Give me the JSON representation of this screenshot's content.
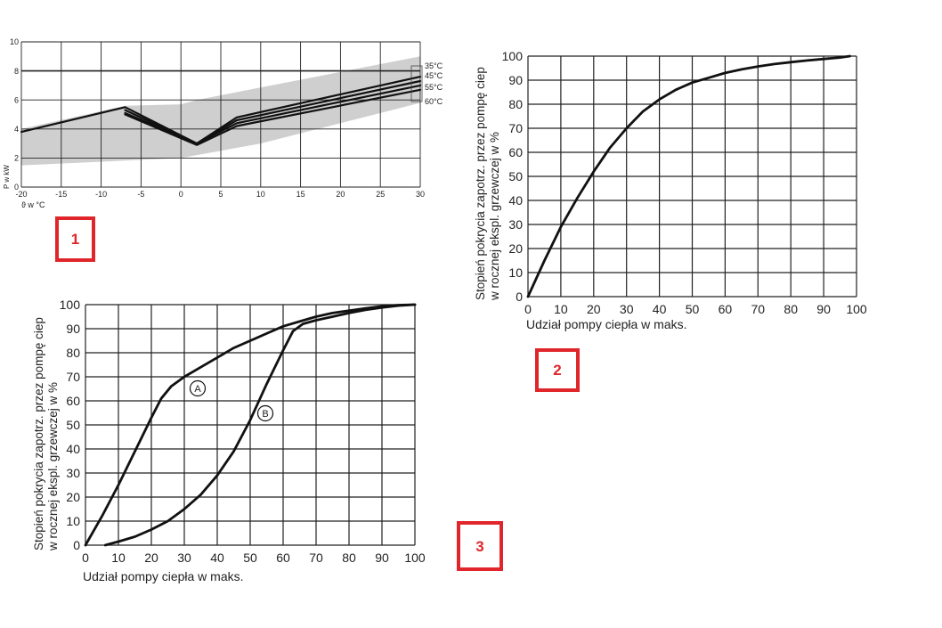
{
  "colors": {
    "badge": "#e0262b",
    "line": "#111111",
    "band": "#cfcfcf",
    "grid": "#222222"
  },
  "badges": [
    "1",
    "2",
    "3"
  ],
  "chart_data": [
    {
      "id": "chart1",
      "type": "line",
      "xlabel": "ϑ w °C",
      "ylabel": "P w kW",
      "xlim": [
        -20,
        30
      ],
      "ylim": [
        0,
        10
      ],
      "x_ticks": [
        -20,
        -15,
        -10,
        -5,
        0,
        5,
        10,
        15,
        20,
        25,
        30
      ],
      "y_ticks": [
        0,
        2,
        4,
        6,
        8,
        10
      ],
      "grid": true,
      "band": {
        "upper": [
          [
            -20,
            4.0
          ],
          [
            -7,
            5.6
          ],
          [
            0,
            5.7
          ],
          [
            2,
            6.0
          ],
          [
            30,
            9.0
          ]
        ],
        "lower": [
          [
            30,
            5.8
          ],
          [
            10,
            3.0
          ],
          [
            0,
            2.0
          ],
          [
            -20,
            1.5
          ]
        ]
      },
      "series": [
        {
          "name": "35°C",
          "values": [
            [
              -20,
              3.8
            ],
            [
              -7,
              5.5
            ],
            [
              2,
              3.0
            ],
            [
              7,
              4.8
            ],
            [
              30,
              7.6
            ]
          ]
        },
        {
          "name": "45°C",
          "values": [
            [
              -7,
              5.3
            ],
            [
              2,
              3.0
            ],
            [
              7,
              4.6
            ],
            [
              30,
              7.3
            ]
          ]
        },
        {
          "name": "55°C",
          "values": [
            [
              -7,
              5.1
            ],
            [
              2,
              3.0
            ],
            [
              7,
              4.4
            ],
            [
              30,
              7.0
            ]
          ]
        },
        {
          "name": "60°C",
          "values": [
            [
              -7,
              5.0
            ],
            [
              2,
              2.9
            ],
            [
              7,
              4.2
            ],
            [
              30,
              6.7
            ]
          ]
        }
      ]
    },
    {
      "id": "chart2",
      "type": "line",
      "xlabel": "Udział pompy ciepła w maks.",
      "ylabel_lines": [
        "Stopień pokrycia zapotrz. przez pompę ciep",
        "w rocznej ekspl. grzewczej w %"
      ],
      "xlim": [
        0,
        100
      ],
      "ylim": [
        0,
        100
      ],
      "x_ticks": [
        0,
        10,
        20,
        30,
        40,
        50,
        60,
        70,
        80,
        90,
        100
      ],
      "y_ticks": [
        0,
        10,
        20,
        30,
        40,
        50,
        60,
        70,
        80,
        90,
        100
      ],
      "grid": true,
      "series": [
        {
          "values": [
            [
              0,
              0
            ],
            [
              5,
              15
            ],
            [
              10,
              29
            ],
            [
              15,
              41
            ],
            [
              20,
              52
            ],
            [
              25,
              62
            ],
            [
              30,
              70
            ],
            [
              35,
              77
            ],
            [
              40,
              82
            ],
            [
              45,
              86
            ],
            [
              50,
              89
            ],
            [
              55,
              91
            ],
            [
              60,
              93
            ],
            [
              65,
              94.5
            ],
            [
              70,
              95.7
            ],
            [
              75,
              96.7
            ],
            [
              80,
              97.5
            ],
            [
              85,
              98.2
            ],
            [
              90,
              98.8
            ],
            [
              95,
              99.4
            ],
            [
              98,
              100
            ]
          ]
        }
      ]
    },
    {
      "id": "chart3",
      "type": "line",
      "xlabel": "Udział pompy ciepła w maks.",
      "ylabel_lines": [
        "Stopień pokrycia zapotrz. przez pompę ciep",
        "w rocznej ekspl. grzewczej w %"
      ],
      "xlim": [
        0,
        100
      ],
      "ylim": [
        0,
        100
      ],
      "x_ticks": [
        0,
        10,
        20,
        30,
        40,
        50,
        60,
        70,
        80,
        90,
        100
      ],
      "y_ticks": [
        0,
        10,
        20,
        30,
        40,
        50,
        60,
        70,
        80,
        90,
        100
      ],
      "grid": true,
      "series": [
        {
          "name": "A",
          "values": [
            [
              0,
              0
            ],
            [
              5,
              12
            ],
            [
              10,
              25
            ],
            [
              15,
              39
            ],
            [
              20,
              53
            ],
            [
              23,
              61
            ],
            [
              26,
              66
            ],
            [
              30,
              70
            ],
            [
              35,
              74
            ],
            [
              40,
              78
            ],
            [
              45,
              82
            ],
            [
              50,
              85
            ],
            [
              55,
              88
            ],
            [
              60,
              91
            ],
            [
              65,
              93
            ],
            [
              70,
              95
            ],
            [
              75,
              96.5
            ],
            [
              80,
              97.5
            ],
            [
              85,
              98.5
            ],
            [
              90,
              99.3
            ],
            [
              95,
              99.8
            ],
            [
              100,
              100
            ]
          ]
        },
        {
          "name": "B",
          "values": [
            [
              6,
              0
            ],
            [
              10,
              1.5
            ],
            [
              15,
              3.5
            ],
            [
              20,
              6.5
            ],
            [
              25,
              10
            ],
            [
              30,
              15
            ],
            [
              35,
              21
            ],
            [
              40,
              29
            ],
            [
              45,
              39
            ],
            [
              50,
              52
            ],
            [
              55,
              67
            ],
            [
              60,
              81
            ],
            [
              63,
              89
            ],
            [
              66,
              92
            ],
            [
              70,
              93.5
            ],
            [
              75,
              95
            ],
            [
              80,
              96.5
            ],
            [
              85,
              97.8
            ],
            [
              90,
              98.8
            ],
            [
              95,
              99.6
            ],
            [
              100,
              100
            ]
          ]
        }
      ]
    }
  ]
}
